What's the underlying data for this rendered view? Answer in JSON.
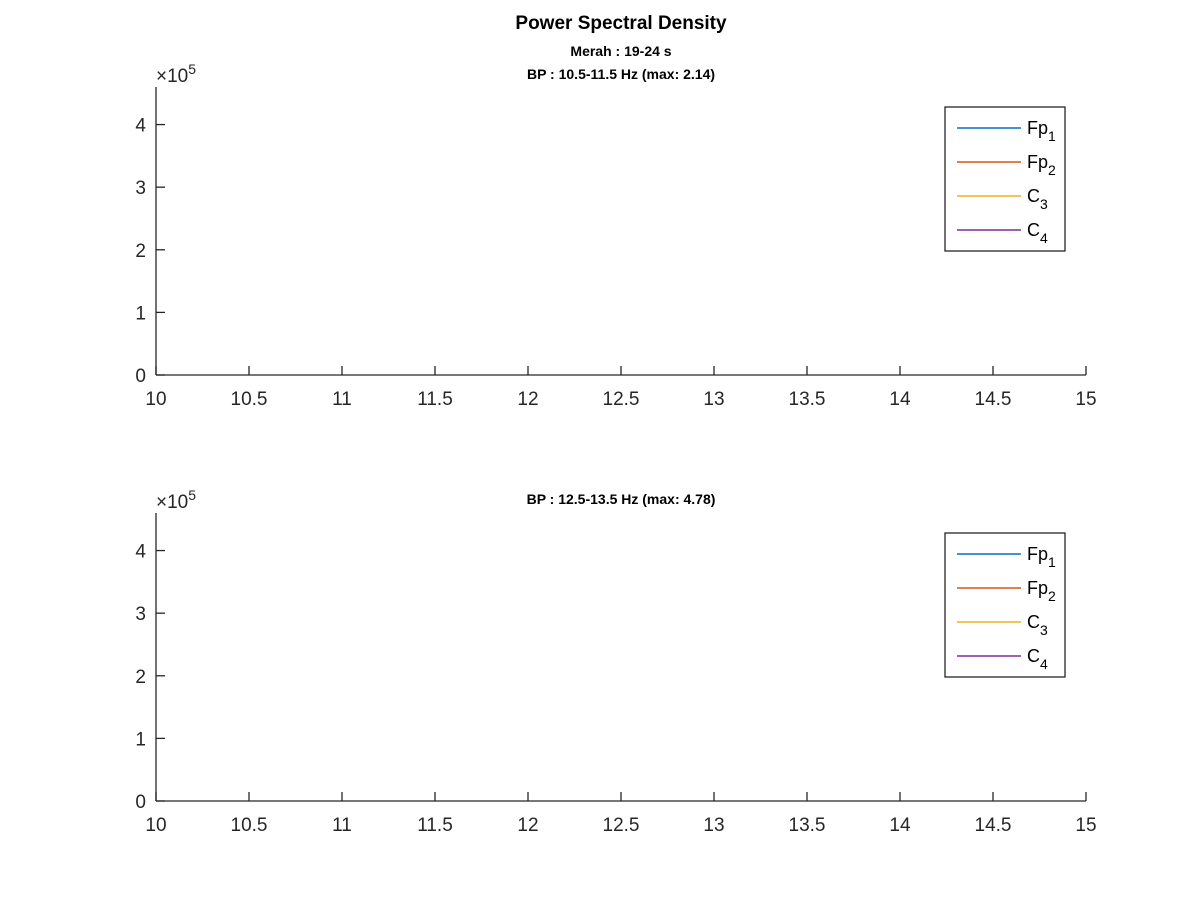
{
  "figure": {
    "title": "Power Spectral Density",
    "subtitle": "Merah : 19-24 s"
  },
  "chart_data": [
    {
      "type": "line",
      "title": "BP : 10.5-11.5 Hz (max: 2.14)",
      "xlabel": "",
      "ylabel": "",
      "xlim": [
        10,
        15
      ],
      "ylim": [
        0,
        460000
      ],
      "y_exponent_label": "×10",
      "y_exponent_power": "5",
      "x_ticks": [
        10,
        10.5,
        11,
        11.5,
        12,
        12.5,
        13,
        13.5,
        14,
        14.5,
        15
      ],
      "x_tick_labels": [
        "10",
        "10.5",
        "11",
        "11.5",
        "12",
        "12.5",
        "13",
        "13.5",
        "14",
        "14.5",
        "15"
      ],
      "y_ticks": [
        0,
        100000,
        200000,
        300000,
        400000
      ],
      "y_tick_labels": [
        "0",
        "1",
        "2",
        "3",
        "4"
      ],
      "grid": false,
      "legend_position": "top-right",
      "series": [
        {
          "name": "Fp",
          "subscript": "1",
          "color": "#0072BD",
          "x": [],
          "y": []
        },
        {
          "name": "Fp",
          "subscript": "2",
          "color": "#D95319",
          "x": [],
          "y": []
        },
        {
          "name": "C",
          "subscript": "3",
          "color": "#EDB120",
          "x": [],
          "y": []
        },
        {
          "name": "C",
          "subscript": "4",
          "color": "#7E2F8E",
          "x": [],
          "y": []
        }
      ]
    },
    {
      "type": "line",
      "title": "BP : 12.5-13.5 Hz (max: 4.78)",
      "xlabel": "",
      "ylabel": "",
      "xlim": [
        10,
        15
      ],
      "ylim": [
        0,
        460000
      ],
      "y_exponent_label": "×10",
      "y_exponent_power": "5",
      "x_ticks": [
        10,
        10.5,
        11,
        11.5,
        12,
        12.5,
        13,
        13.5,
        14,
        14.5,
        15
      ],
      "x_tick_labels": [
        "10",
        "10.5",
        "11",
        "11.5",
        "12",
        "12.5",
        "13",
        "13.5",
        "14",
        "14.5",
        "15"
      ],
      "y_ticks": [
        0,
        100000,
        200000,
        300000,
        400000
      ],
      "y_tick_labels": [
        "0",
        "1",
        "2",
        "3",
        "4"
      ],
      "grid": false,
      "legend_position": "top-right",
      "series": [
        {
          "name": "Fp",
          "subscript": "1",
          "color": "#0072BD",
          "x": [],
          "y": []
        },
        {
          "name": "Fp",
          "subscript": "2",
          "color": "#D95319",
          "x": [],
          "y": []
        },
        {
          "name": "C",
          "subscript": "3",
          "color": "#EDB120",
          "x": [],
          "y": []
        },
        {
          "name": "C",
          "subscript": "4",
          "color": "#7E2F8E",
          "x": [],
          "y": []
        }
      ]
    }
  ]
}
